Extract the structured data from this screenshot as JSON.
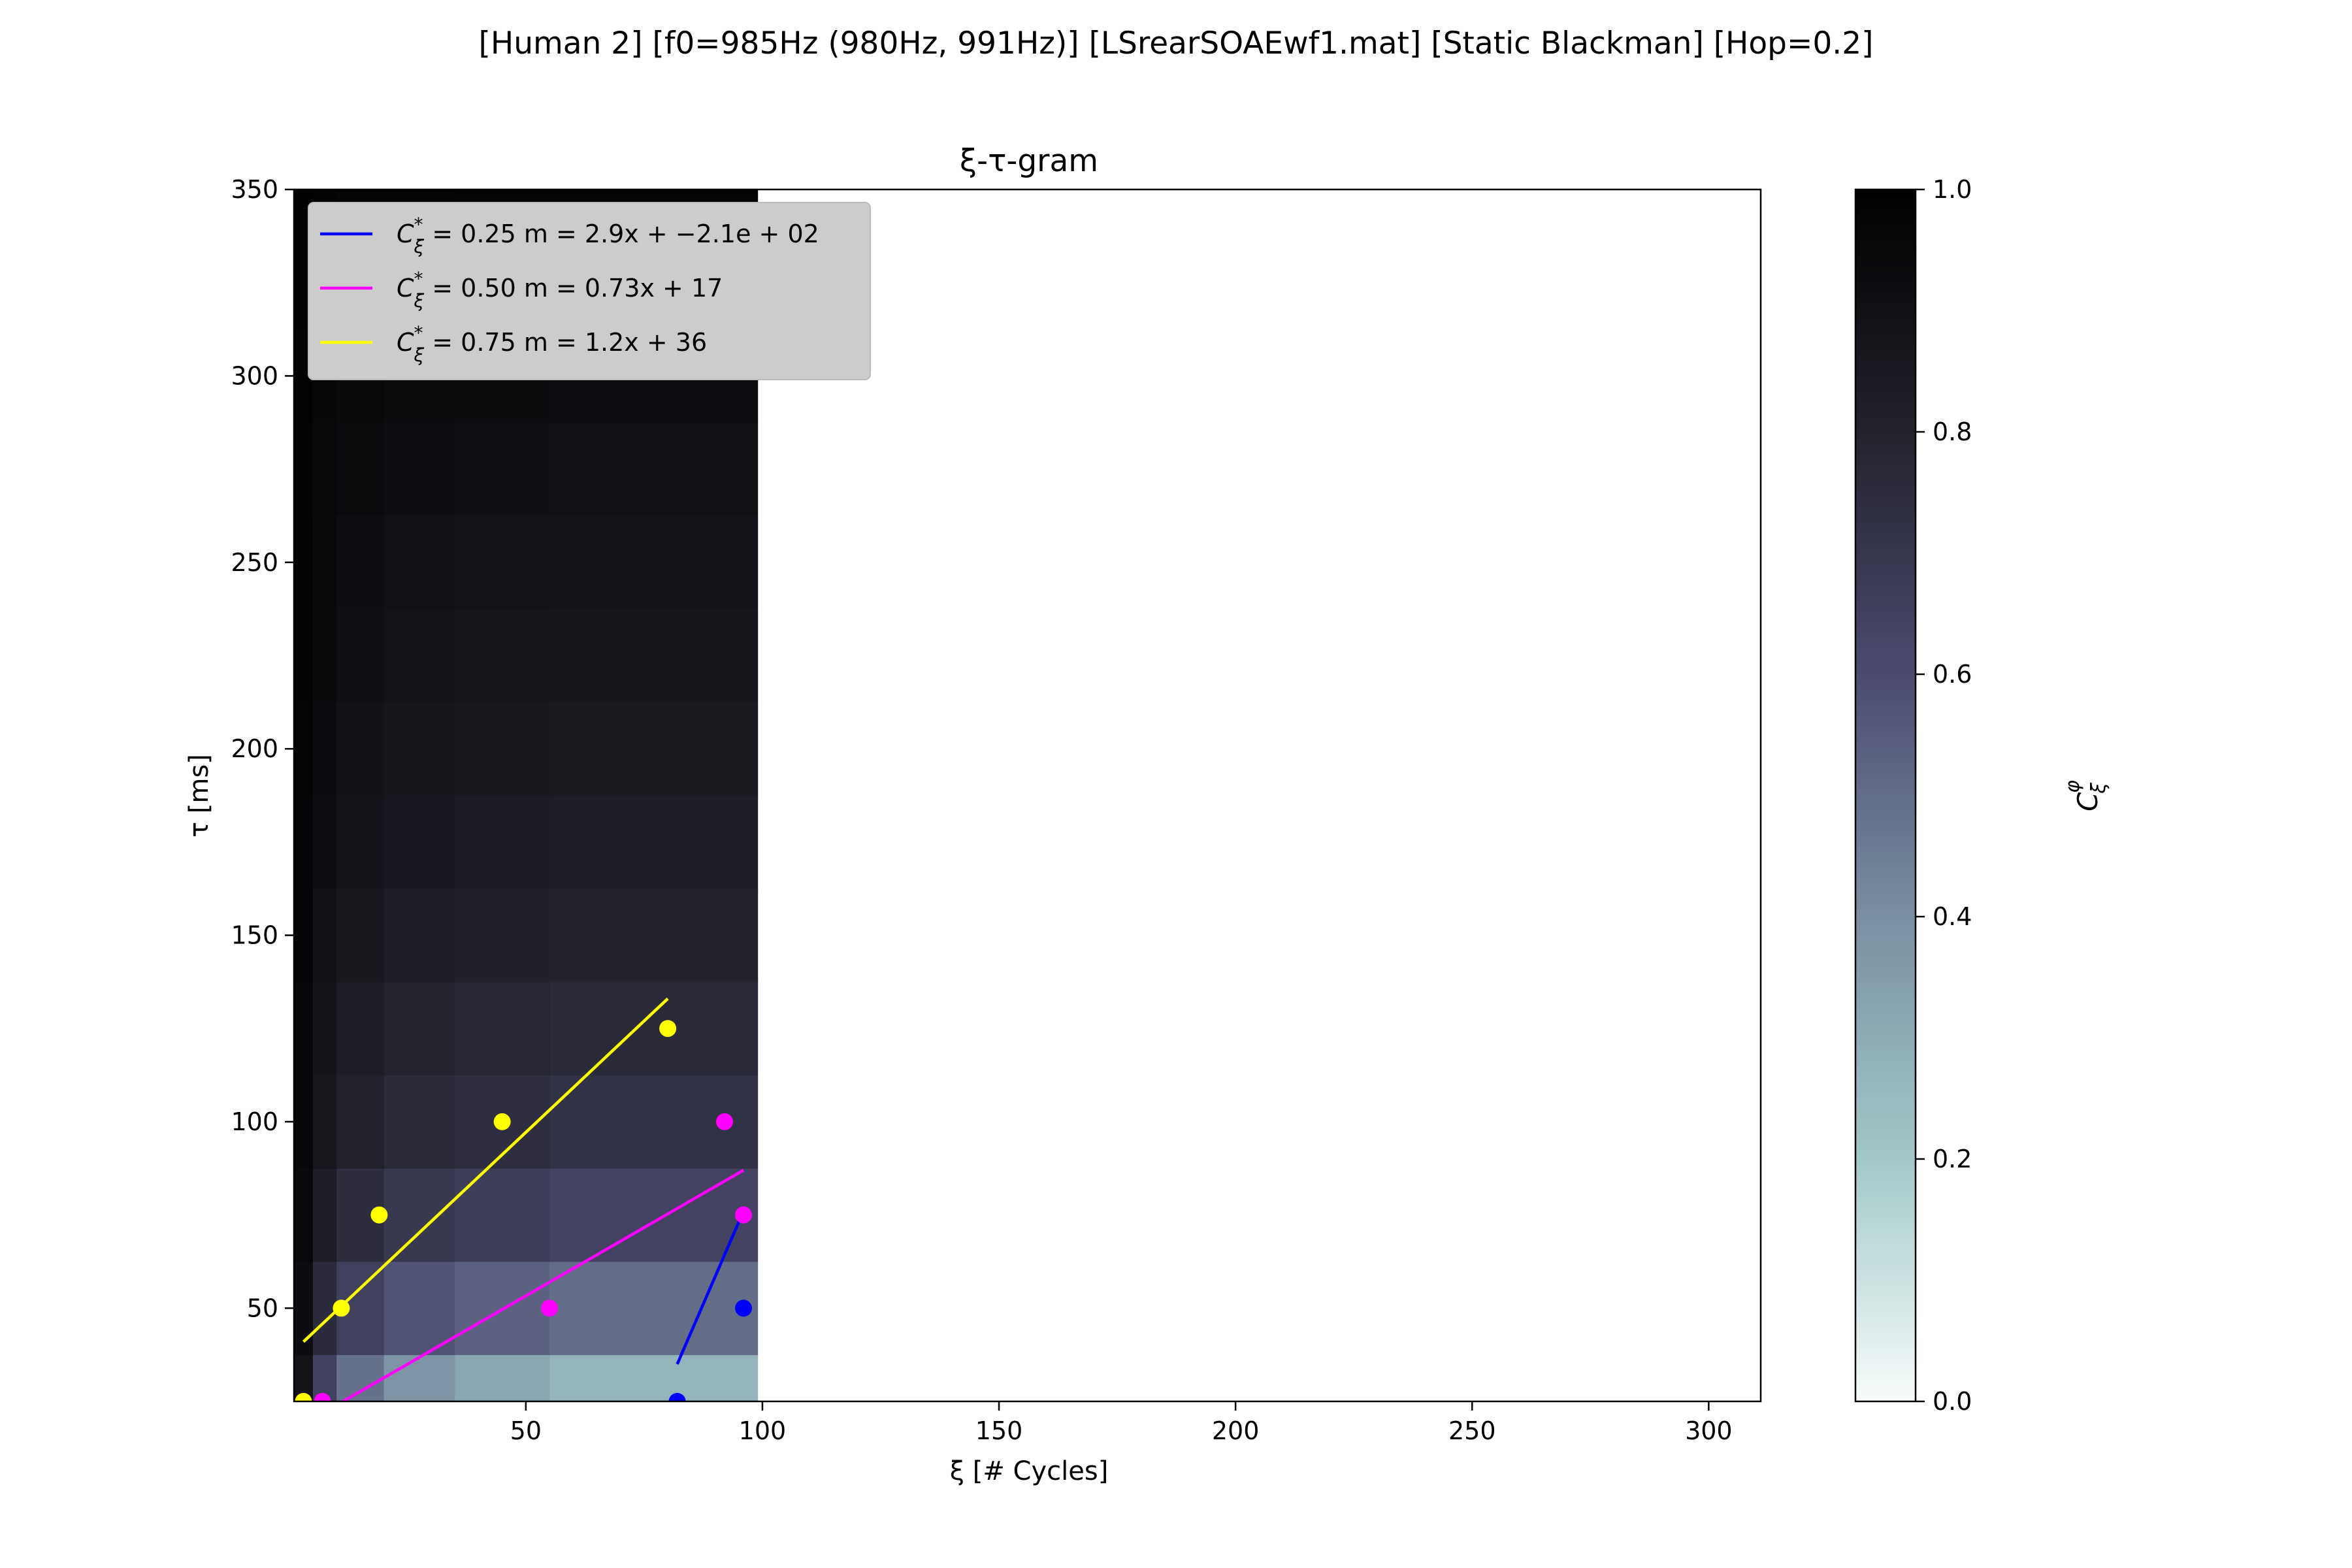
{
  "figure": {
    "suptitle": "[Human 2]   [f0=985Hz (980Hz, 991Hz)]   [LSrearSOAEwf1.mat]   [Static Blackman]   [Hop=0.2]"
  },
  "chart_data": {
    "type": "heatmap",
    "title": "ξ-τ-gram",
    "xlabel": "ξ [# Cycles]",
    "ylabel": "τ [ms]",
    "xlim": [
      1,
      311
    ],
    "ylim": [
      25,
      350
    ],
    "xticks": [
      50,
      100,
      150,
      200,
      250,
      300
    ],
    "yticks": [
      50,
      100,
      150,
      200,
      250,
      300,
      350
    ],
    "grid": false,
    "legend_position": "upper-left",
    "heatmap": {
      "x_extent": [
        1,
        99
      ],
      "tau_rows": [
        25,
        50,
        75,
        100,
        125,
        150,
        175,
        200,
        225,
        250,
        275,
        300,
        325,
        350
      ],
      "x_shoulder": [
        1,
        5,
        10,
        20,
        35,
        55,
        99
      ],
      "row_tail_value": [
        0.27,
        0.5,
        0.64,
        0.72,
        0.76,
        0.8,
        0.83,
        0.85,
        0.87,
        0.88,
        0.9,
        0.92,
        0.95,
        0.97
      ],
      "colormap_stops": [
        "#f7fbfb",
        "#a3c8c8",
        "#7a8fa0",
        "#4b4b6e",
        "#22222c",
        "#000000"
      ]
    },
    "colorbar": {
      "label": "C_ξ^φ",
      "range": [
        0,
        1
      ],
      "ticks": [
        "0.0",
        "0.2",
        "0.4",
        "0.6",
        "0.8",
        "1.0"
      ]
    },
    "series": [
      {
        "name_main": "C",
        "name_sup": "*",
        "name_sub": "ξ",
        "name_rest": " = 0.25  m = 2.9x + −2.1e + 02",
        "color": "#0000ff",
        "points": [
          [
            82,
            25
          ],
          [
            96,
            50
          ]
        ],
        "fit_line": [
          [
            82,
            35
          ],
          [
            96,
            76
          ]
        ]
      },
      {
        "name_main": "C",
        "name_sup": "*",
        "name_sub": "ξ",
        "name_rest": " = 0.50  m = 0.73x + 17",
        "color": "#ff00ff",
        "points": [
          [
            7,
            25
          ],
          [
            55,
            50
          ],
          [
            96,
            75
          ],
          [
            92,
            100
          ]
        ],
        "fit_line": [
          [
            10,
            24
          ],
          [
            96,
            87
          ]
        ]
      },
      {
        "name_main": "C",
        "name_sup": "*",
        "name_sub": "ξ",
        "name_rest": " = 0.75  m = 1.2x + 36",
        "color": "#ffff00",
        "points": [
          [
            3,
            25
          ],
          [
            11,
            50
          ],
          [
            19,
            75
          ],
          [
            45,
            100
          ],
          [
            80,
            125
          ]
        ],
        "fit_line": [
          [
            3,
            41
          ],
          [
            80,
            133
          ]
        ]
      }
    ]
  }
}
